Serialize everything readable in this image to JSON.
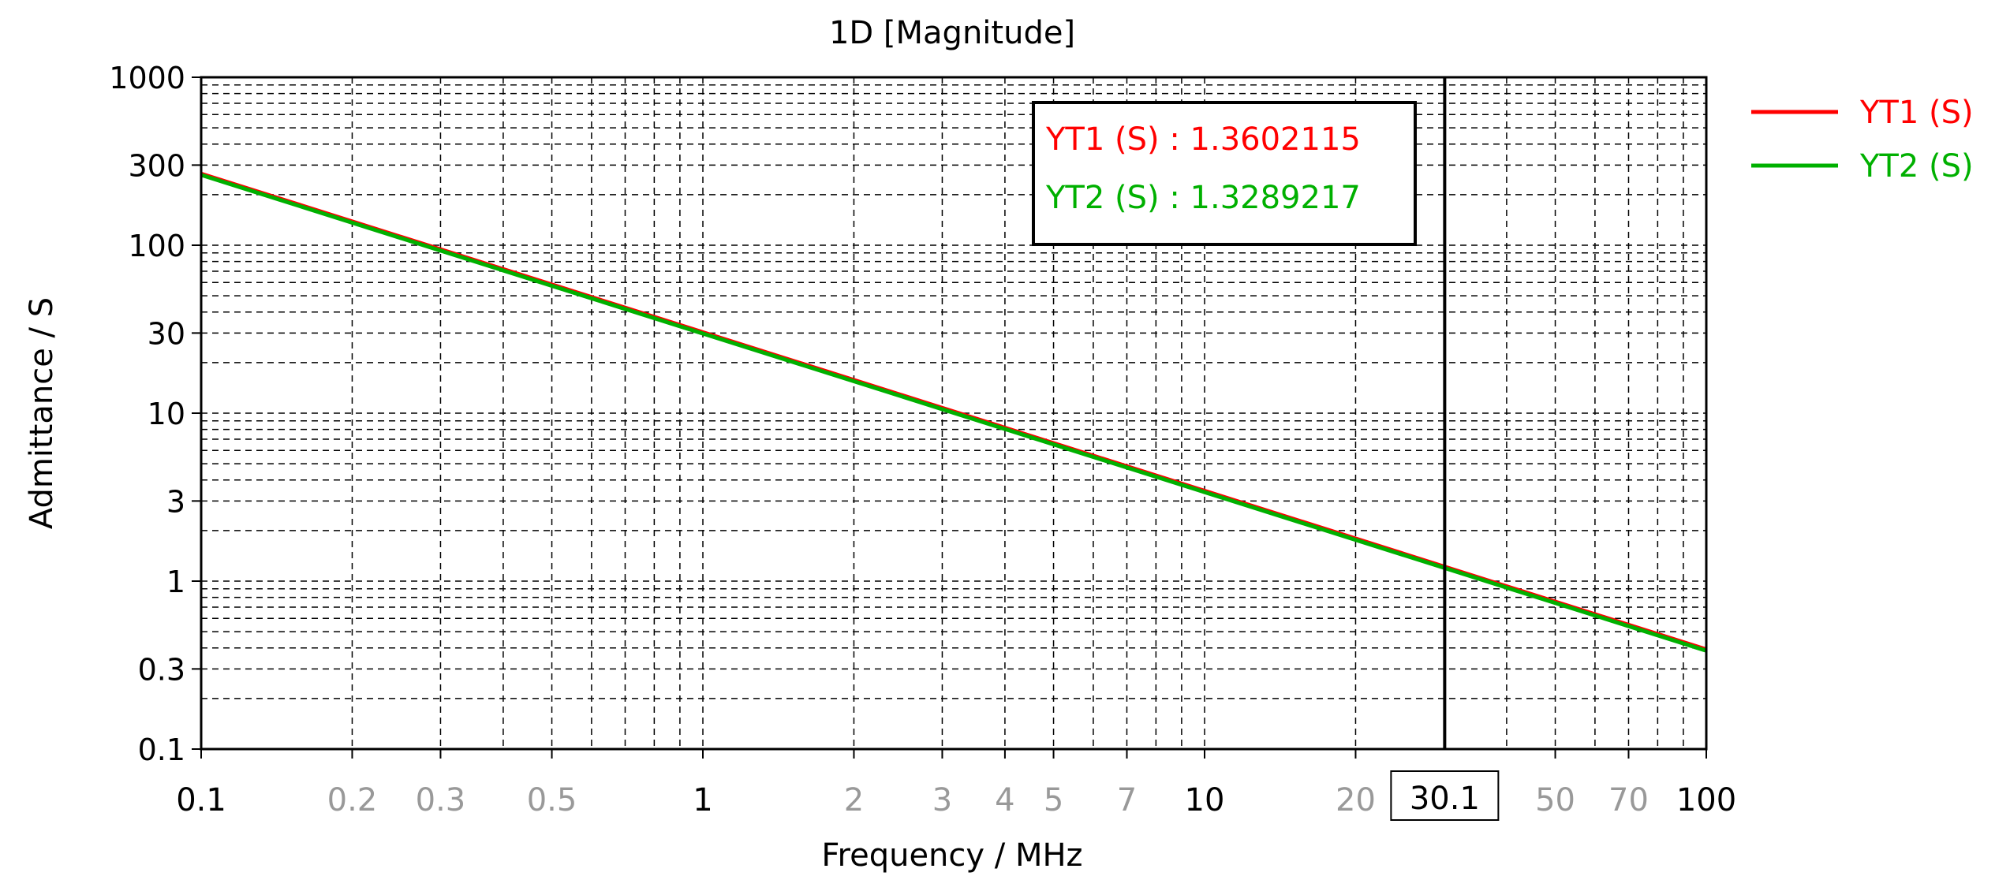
{
  "colors": {
    "series1": "#ff0000",
    "series2": "#00b000",
    "tick_major": "#000000",
    "tick_minor": "#999999",
    "grid": "#000000",
    "background": "#ffffff"
  },
  "chart_data": {
    "type": "line",
    "title": "1D [Magnitude]",
    "xlabel": "Frequency / MHz",
    "ylabel": "Admittance / S",
    "x_scale": "log",
    "y_scale": "log",
    "xlim": [
      0.1,
      100
    ],
    "ylim": [
      0.1,
      1000
    ],
    "grid": true,
    "legend_position": "right",
    "x_ticks": [
      {
        "value": 0.1,
        "label": "0.1",
        "major": true
      },
      {
        "value": 0.2,
        "label": "0.2",
        "major": false
      },
      {
        "value": 0.3,
        "label": "0.3",
        "major": false
      },
      {
        "value": 0.5,
        "label": "0.5",
        "major": false
      },
      {
        "value": 1,
        "label": "1",
        "major": true
      },
      {
        "value": 2,
        "label": "2",
        "major": false
      },
      {
        "value": 3,
        "label": "3",
        "major": false
      },
      {
        "value": 4,
        "label": "4",
        "major": false
      },
      {
        "value": 5,
        "label": "5",
        "major": false
      },
      {
        "value": 7,
        "label": "7",
        "major": false
      },
      {
        "value": 10,
        "label": "10",
        "major": true
      },
      {
        "value": 20,
        "label": "20",
        "major": false
      },
      {
        "value": 50,
        "label": "50",
        "major": false
      },
      {
        "value": 70,
        "label": "70",
        "major": false
      },
      {
        "value": 100,
        "label": "100",
        "major": true
      }
    ],
    "y_ticks": [
      {
        "value": 0.1,
        "label": "0.1"
      },
      {
        "value": 0.3,
        "label": "0.3"
      },
      {
        "value": 1,
        "label": "1"
      },
      {
        "value": 3,
        "label": "3"
      },
      {
        "value": 10,
        "label": "10"
      },
      {
        "value": 30,
        "label": "30"
      },
      {
        "value": 100,
        "label": "100"
      },
      {
        "value": 300,
        "label": "300"
      },
      {
        "value": 1000,
        "label": "1000"
      }
    ],
    "series": [
      {
        "name": "YT1 (S)",
        "color": "#ff0000",
        "x": [
          0.1,
          100
        ],
        "values": [
          265,
          0.39
        ]
      },
      {
        "name": "YT2 (S)",
        "color": "#00b000",
        "x": [
          0.1,
          100
        ],
        "values": [
          262,
          0.385
        ]
      }
    ],
    "marker": {
      "x": 30.1,
      "x_label": "30.1",
      "readouts": [
        {
          "series": "YT1 (S)",
          "text": "YT1 (S) : 1.3602115"
        },
        {
          "series": "YT2 (S)",
          "text": "YT2 (S) : 1.3289217"
        }
      ]
    }
  }
}
